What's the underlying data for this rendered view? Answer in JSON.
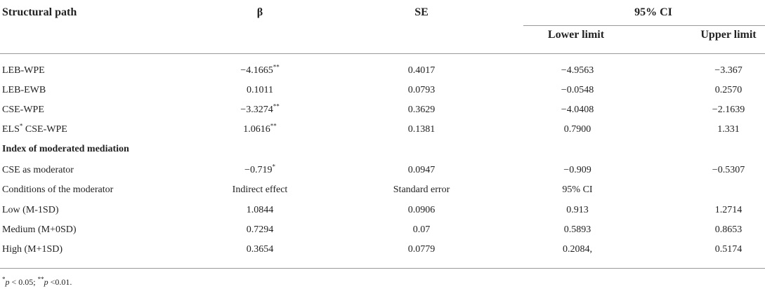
{
  "table": {
    "header": [
      "Structural path",
      "β",
      "SE",
      "95% CI"
    ],
    "subheader": [
      "Lower limit",
      "Upper limit"
    ],
    "rows": [
      [
        "LEB-WPE",
        {
          "text": "−4.1665",
          "sup": "**"
        },
        "0.4017",
        "−4.9563",
        "−3.367"
      ],
      [
        "LEB-EWB",
        "0.1011",
        "0.0793",
        "−0.0548",
        "0.2570"
      ],
      [
        "CSE-WPE",
        {
          "text": "−3.3274",
          "sup": "**"
        },
        "0.3629",
        "−4.0408",
        "−2.1639"
      ],
      [
        {
          "text": "ELS",
          "sup": "*",
          "after": " CSE-WPE"
        },
        {
          "text": "1.0616",
          "sup": "**"
        },
        "0.1381",
        "0.7900",
        "1.331"
      ],
      [
        "Index of moderated mediation"
      ],
      [
        "CSE as moderator",
        {
          "text": "−0.719",
          "sup": "*"
        },
        "0.0947",
        "−0.909",
        "−0.5307"
      ],
      [
        "Conditions of the moderator",
        "Indirect effect",
        "Standard error",
        "95% CI"
      ],
      [
        "Low (M-1SD)",
        "1.0844",
        "0.0906",
        "0.913",
        "1.2714"
      ],
      [
        "Medium (M+0SD)",
        "0.7294",
        "0.07",
        "0.5893",
        "0.8653"
      ],
      [
        "High (M+1SD)",
        "0.3654",
        "0.0779",
        "0.2084,",
        "0.5174"
      ]
    ],
    "footnote": [
      "*",
      "p",
      " < 0.05; ",
      "**",
      "p",
      " <0.01."
    ]
  }
}
